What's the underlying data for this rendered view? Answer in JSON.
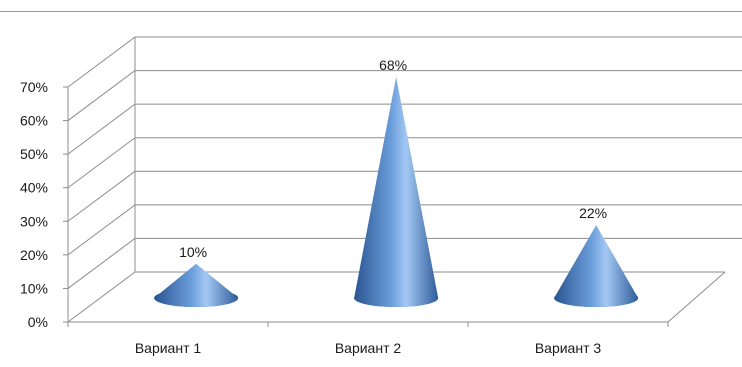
{
  "chart_data": {
    "type": "bar",
    "style": "3d-cone",
    "categories": [
      "Вариант 1",
      "Вариант 2",
      "Вариант 3"
    ],
    "values": [
      10,
      68,
      22
    ],
    "value_labels": [
      "10%",
      "68%",
      "22%"
    ],
    "y_ticks": [
      "0%",
      "10%",
      "20%",
      "30%",
      "40%",
      "50%",
      "60%",
      "70%"
    ],
    "ylim": [
      0,
      70
    ],
    "grid": true,
    "legend": "none",
    "colors": {
      "cone_dark": "#2f5d9a",
      "cone_mid": "#5b8fd0",
      "cone_light": "#9ec4f2",
      "grid": "#8c8c8c"
    }
  }
}
